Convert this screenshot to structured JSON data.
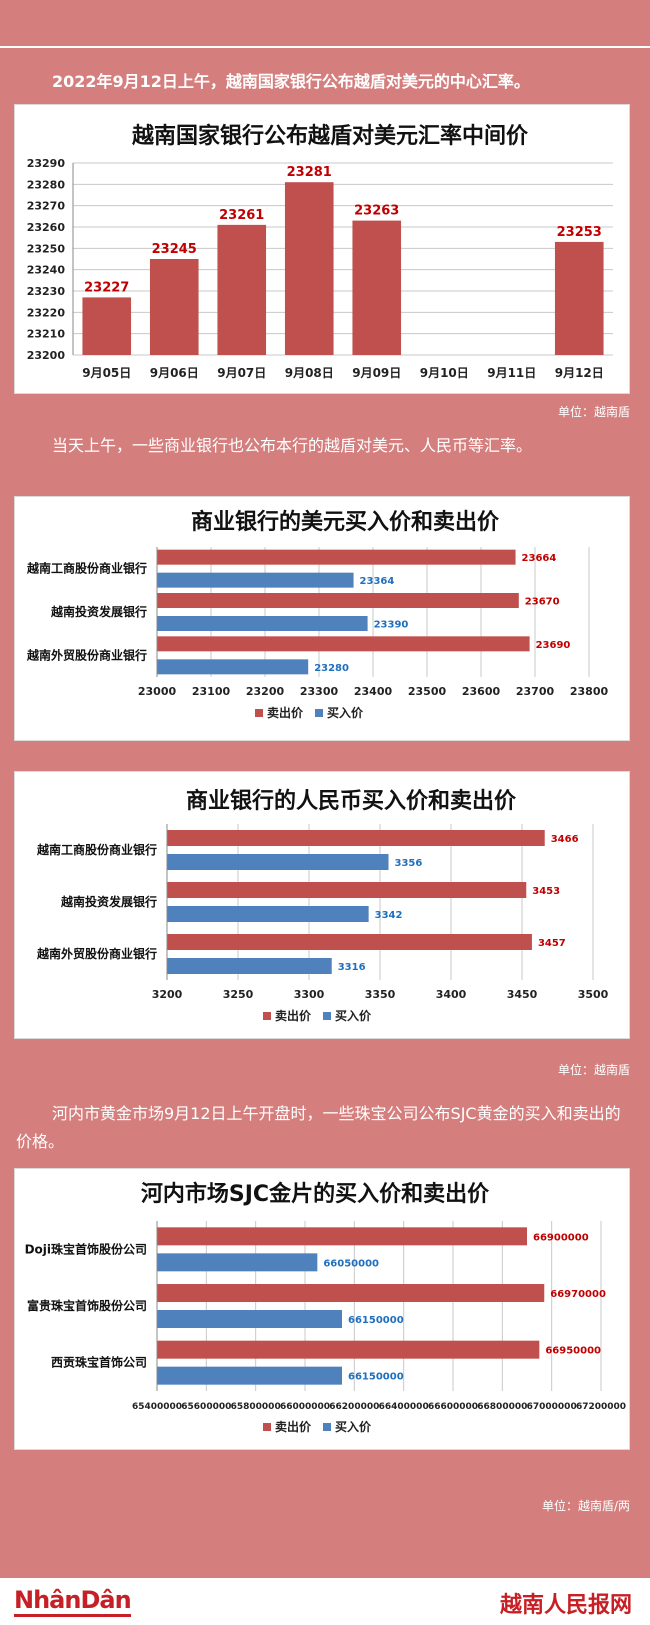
{
  "intro": "2022年9月12日上午，越南国家银行公布越盾对美元的中心汇率。",
  "para2": "当天上午，一些商业银行也公布本行的越盾对美元、人民币等汇率。",
  "para3": "河内市黄金市场9月12日上午开盘时，一些珠宝公司公布SJC黄金的买入和卖出的价格。",
  "unit1": "单位：越南盾",
  "unit2": "单位：越南盾",
  "unit3": "单位：越南盾/两",
  "footer": {
    "logo": "NhânDân",
    "site": "越南人民报网"
  },
  "colors": {
    "background": "#d47f7e",
    "sell": "#c0504d",
    "buy": "#4f81bd",
    "sell_label": "#c00000",
    "buy_label": "#1f6fbf"
  },
  "chart_data": [
    {
      "type": "bar",
      "title": "越南国家银行公布越盾对美元汇率中间价",
      "categories": [
        "9月05日",
        "9月06日",
        "9月07日",
        "9月08日",
        "9月09日",
        "9月10日",
        "9月11日",
        "9月12日"
      ],
      "values": [
        23227,
        23245,
        23261,
        23281,
        23263,
        null,
        null,
        23253
      ],
      "ylim": [
        23200,
        23290
      ],
      "yticks": [
        "23200",
        "23210",
        "23220",
        "23230",
        "23240",
        "23250",
        "23260",
        "23270",
        "23280",
        "23290"
      ],
      "grid": true
    },
    {
      "type": "bar",
      "orientation": "horizontal",
      "title": "商业银行的美元买入价和卖出价",
      "categories": [
        "越南工商股份商业银行",
        "越南投资发展银行",
        "越南外贸股份商业银行"
      ],
      "series": [
        {
          "name": "卖出价",
          "values": [
            23664,
            23670,
            23690
          ]
        },
        {
          "name": "买入价",
          "values": [
            23364,
            23390,
            23280
          ]
        }
      ],
      "xlim": [
        23000,
        23800
      ],
      "xticks": [
        "23000",
        "23100",
        "23200",
        "23300",
        "23400",
        "23500",
        "23600",
        "23700",
        "23800"
      ],
      "legend": "bottom",
      "grid": true
    },
    {
      "type": "bar",
      "orientation": "horizontal",
      "title": "商业银行的人民币买入价和卖出价",
      "categories": [
        "越南工商股份商业银行",
        "越南投资发展银行",
        "越南外贸股份商业银行"
      ],
      "series": [
        {
          "name": "卖出价",
          "values": [
            3466,
            3453,
            3457
          ]
        },
        {
          "name": "买入价",
          "values": [
            3356,
            3342,
            3316
          ]
        }
      ],
      "xlim": [
        3200,
        3500
      ],
      "xticks": [
        "3200",
        "3250",
        "3300",
        "3350",
        "3400",
        "3450",
        "3500"
      ],
      "legend": "bottom",
      "grid": true
    },
    {
      "type": "bar",
      "orientation": "horizontal",
      "title": "河内市场SJC金片的买入价和卖出价",
      "categories": [
        "Doji珠宝首饰股份公司",
        "富贵珠宝首饰股份公司",
        "西贡珠宝首饰公司"
      ],
      "series": [
        {
          "name": "卖出价",
          "values": [
            66900000,
            66970000,
            66950000
          ]
        },
        {
          "name": "买入价",
          "values": [
            66050000,
            66150000,
            66150000
          ]
        }
      ],
      "xlim": [
        65400000,
        67200000
      ],
      "xticks": [
        "65400000",
        "65600000",
        "65800000",
        "66000000",
        "66200000",
        "66400000",
        "66600000",
        "66800000",
        "67000000",
        "67200000"
      ],
      "legend": "bottom",
      "grid": true
    }
  ]
}
